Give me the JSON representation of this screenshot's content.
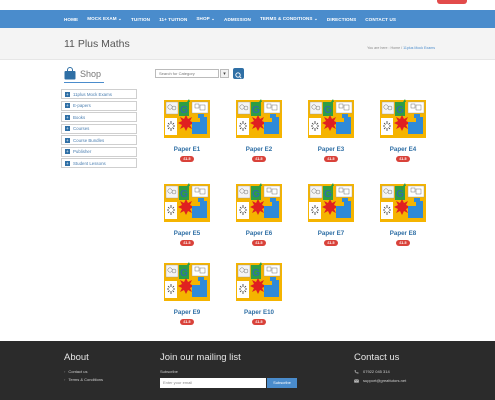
{
  "nav": {
    "items": [
      "HOME",
      "MOCK EXAM ⌄",
      "TUITION",
      "11+ TUITION",
      "SHOP ⌄",
      "ADMISSION",
      "TERMS & CONDITIONS ⌄",
      "DIRECTIONS",
      "CONTACT US"
    ]
  },
  "page": {
    "title": "11 Plus Maths",
    "breadcrumb_prefix": "You are here : Home / ",
    "breadcrumb_active": "11plus Mock Exams"
  },
  "sidebar": {
    "heading": "Shop",
    "categories": [
      "11plus Mock Exams",
      "E-papers",
      "Books",
      "Courses",
      "Course Bundles",
      "Publisher",
      "Student Lessons"
    ]
  },
  "search": {
    "placeholder": "Search for Category"
  },
  "products": [
    {
      "name": "Paper E1",
      "price": "£1.5"
    },
    {
      "name": "Paper E2",
      "price": "£1.5"
    },
    {
      "name": "Paper E3",
      "price": "£1.5"
    },
    {
      "name": "Paper E4",
      "price": "£1.5"
    },
    {
      "name": "Paper E5",
      "price": "£1.5"
    },
    {
      "name": "Paper E6",
      "price": "£1.5"
    },
    {
      "name": "Paper E7",
      "price": "£1.5"
    },
    {
      "name": "Paper E8",
      "price": "£1.5"
    },
    {
      "name": "Paper E9",
      "price": "£1.5"
    },
    {
      "name": "Paper E10",
      "price": "£1.5"
    }
  ],
  "footer": {
    "about_heading": "About",
    "about_links": [
      "Contact us",
      "Terms & Conditions"
    ],
    "mailing_heading": "Join our mailing list",
    "subscribe_label": "Subscribe",
    "email_placeholder": "Enter your email",
    "subscribe_button": "Subscribe",
    "contact_heading": "Contact us",
    "phone": "07922 045 314",
    "email": "support@greattutors.net"
  },
  "colors": {
    "nav_bg": "#4a8ccc",
    "link": "#2f6fa5",
    "price_badge": "#d9423a",
    "footer_bg": "#2b2b2b"
  }
}
